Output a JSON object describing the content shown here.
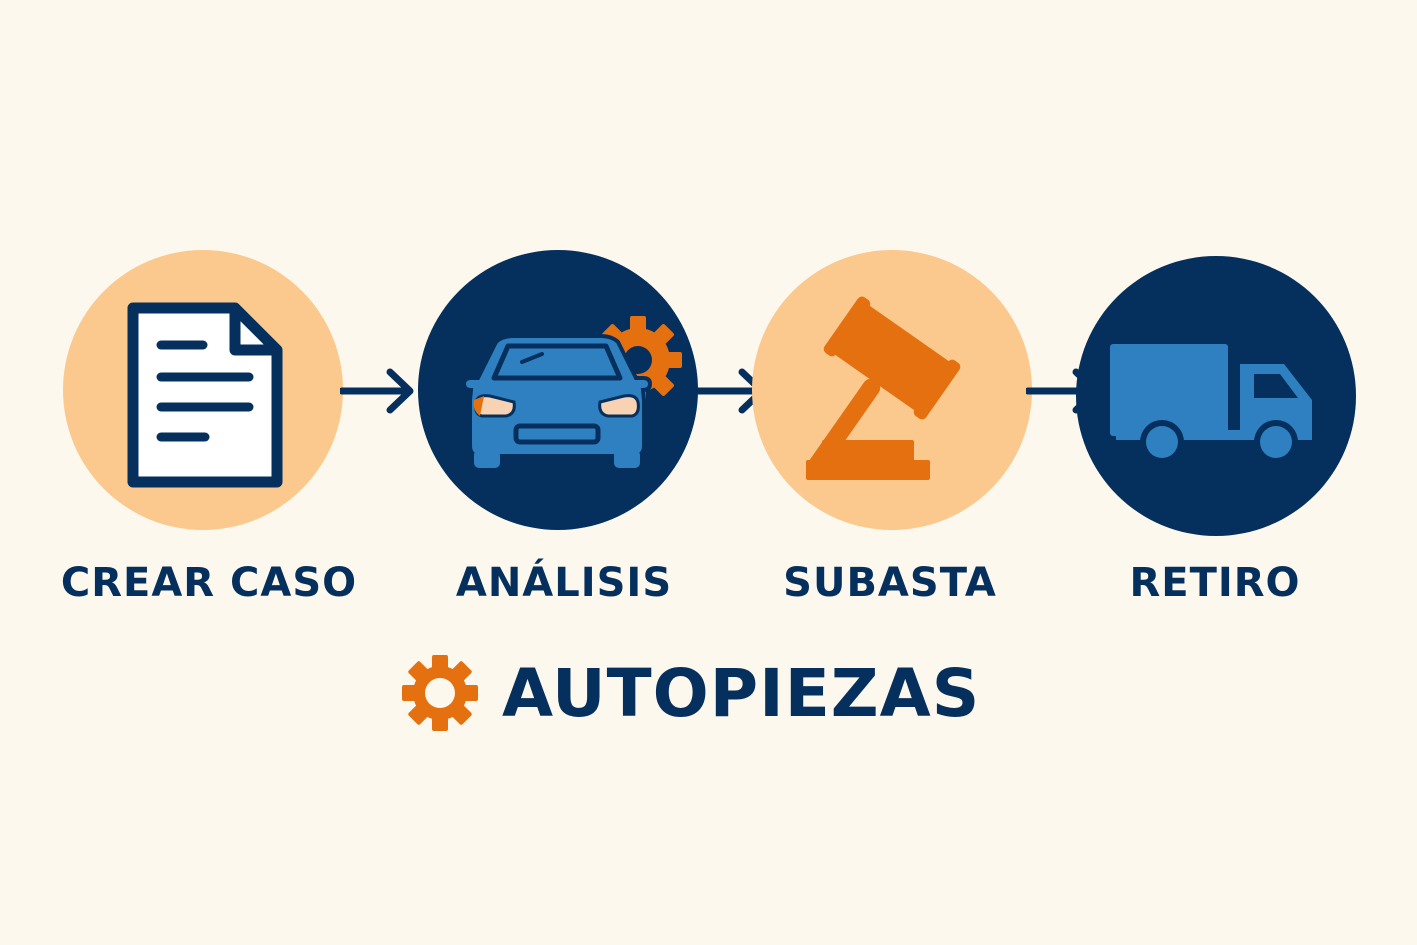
{
  "steps": [
    {
      "label": "CREAR CASO",
      "icon": "document-icon",
      "circle_color": "#fbc98e"
    },
    {
      "label": "ANÁLISIS",
      "icon": "car-gear-icon",
      "circle_color": "#05305e"
    },
    {
      "label": "SUBASTA",
      "icon": "gavel-icon",
      "circle_color": "#fbc98e"
    },
    {
      "label": "RETIRO",
      "icon": "truck-icon",
      "circle_color": "#05305e"
    }
  ],
  "brand": {
    "name": "AUTOPIEZAS",
    "icon": "gear-icon"
  },
  "colors": {
    "navy": "#05305e",
    "peach": "#fbc98e",
    "orange": "#e5700f",
    "blue": "#2f80c0",
    "background": "#fdf8ee"
  }
}
